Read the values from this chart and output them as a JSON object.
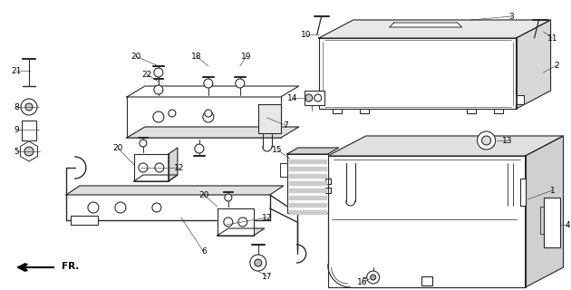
{
  "background_color": "#ffffff",
  "line_color": "#2a2a2a",
  "fig_width": 6.3,
  "fig_height": 3.2,
  "dpi": 100
}
